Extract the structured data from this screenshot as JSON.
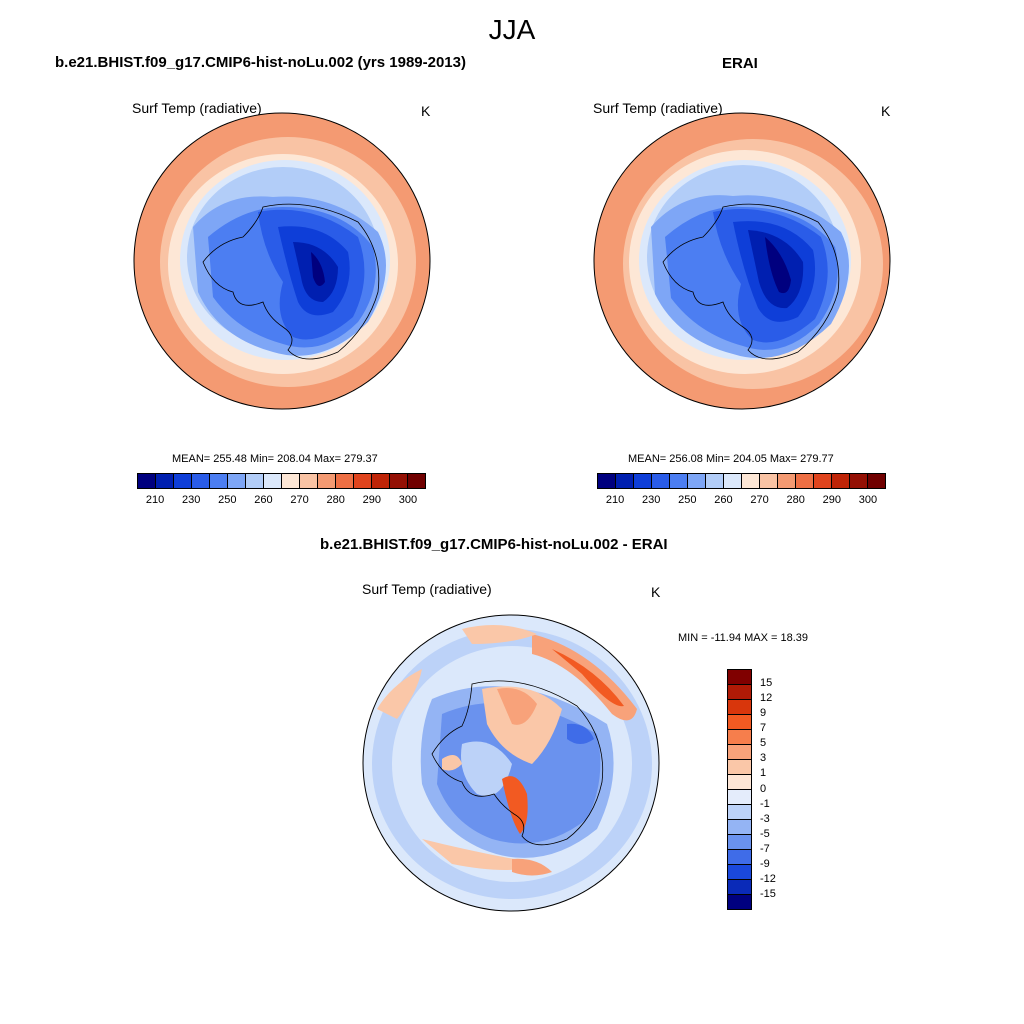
{
  "season": "JJA",
  "left_panel": {
    "title": "b.e21.BHIST.f09_g17.CMIP6-hist-noLu.002 (yrs 1989-2013)",
    "variable": "Surf Temp (radiative)",
    "units": "K",
    "stats": "MEAN= 255.48  Min= 208.04  Max= 279.37"
  },
  "right_panel": {
    "title": "ERAI",
    "variable": "Surf Temp (radiative)",
    "units": "K",
    "stats": "MEAN= 256.08  Min= 204.05  Max= 279.77"
  },
  "diff_panel": {
    "title": "b.e21.BHIST.f09_g17.CMIP6-hist-noLu.002 - ERAI",
    "variable": "Surf Temp (radiative)",
    "units": "K",
    "stats": "MIN = -11.94 MAX =  18.39"
  },
  "colorbar_temp": {
    "labels": [
      "210",
      "230",
      "250",
      "260",
      "270",
      "280",
      "290",
      "300"
    ],
    "colors": [
      "#00007f",
      "#001fb0",
      "#0e3ed8",
      "#2a5ce8",
      "#4c7ef2",
      "#7ea6f6",
      "#b2cdf8",
      "#dbe8fb",
      "#fde7d6",
      "#f9c3a4",
      "#f49a72",
      "#ee6f44",
      "#e0441d",
      "#bf2407",
      "#941004",
      "#700000"
    ]
  },
  "colorbar_diff": {
    "labels": [
      "15",
      "12",
      "9",
      "7",
      "5",
      "3",
      "1",
      "0",
      "-1",
      "-3",
      "-5",
      "-7",
      "-9",
      "-12",
      "-15"
    ],
    "colors": [
      "#800000",
      "#b01a06",
      "#d8360c",
      "#f25a22",
      "#f67e4c",
      "#f8a27a",
      "#fac7a8",
      "#fde6d6",
      "#e4ecfb",
      "#bcd2f8",
      "#94b4f4",
      "#6a92ee",
      "#3f6ce8",
      "#1a48dc",
      "#0a2ab8",
      "#00007f"
    ]
  },
  "chart_data": [
    {
      "type": "heatmap",
      "title": "b.e21.BHIST.f09_g17.CMIP6-hist-noLu.002 (yrs 1989-2013)",
      "variable": "Surf Temp (radiative)",
      "units": "K",
      "mean": 255.48,
      "min": 208.04,
      "max": 279.37,
      "colorbar_levels": [
        210,
        230,
        250,
        260,
        270,
        280,
        290,
        300
      ],
      "projection": "south polar stereographic"
    },
    {
      "type": "heatmap",
      "title": "ERAI",
      "variable": "Surf Temp (radiative)",
      "units": "K",
      "mean": 256.08,
      "min": 204.05,
      "max": 279.77,
      "colorbar_levels": [
        210,
        230,
        250,
        260,
        270,
        280,
        290,
        300
      ],
      "projection": "south polar stereographic"
    },
    {
      "type": "heatmap",
      "title": "b.e21.BHIST.f09_g17.CMIP6-hist-noLu.002 - ERAI",
      "variable": "Surf Temp (radiative)",
      "units": "K",
      "min": -11.94,
      "max": 18.39,
      "colorbar_levels": [
        15,
        12,
        9,
        7,
        5,
        3,
        1,
        0,
        -1,
        -3,
        -5,
        -7,
        -9,
        -12,
        -15
      ],
      "projection": "south polar stereographic"
    }
  ]
}
